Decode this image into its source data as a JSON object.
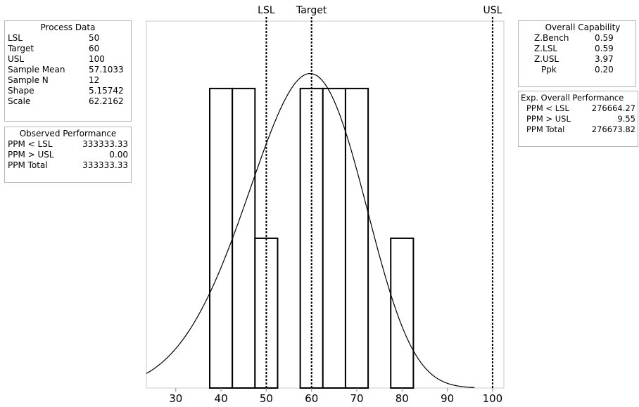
{
  "process_data": {
    "title": "Process Data",
    "rows": [
      {
        "label": "LSL",
        "value": "50"
      },
      {
        "label": "Target",
        "value": "60"
      },
      {
        "label": "USL",
        "value": "100"
      },
      {
        "label": "Sample Mean",
        "value": "57.1033"
      },
      {
        "label": "Sample N",
        "value": "12"
      },
      {
        "label": "Shape",
        "value": "5.15742"
      },
      {
        "label": "Scale",
        "value": "62.2162"
      }
    ]
  },
  "observed_performance": {
    "title": "Observed Performance",
    "rows": [
      {
        "label": "PPM < LSL",
        "value": "333333.33"
      },
      {
        "label": "PPM > USL",
        "value": "0.00"
      },
      {
        "label": "PPM Total",
        "value": "333333.33"
      }
    ]
  },
  "overall_capability": {
    "title": "Overall Capability",
    "rows": [
      {
        "label": "Z.Bench",
        "value": "0.59"
      },
      {
        "label": "Z.LSL",
        "value": "0.59"
      },
      {
        "label": "Z.USL",
        "value": "3.97"
      },
      {
        "label": "Ppk",
        "value": "0.20"
      }
    ]
  },
  "exp_overall_performance": {
    "title": "Exp. Overall Performance",
    "rows": [
      {
        "label": "PPM < LSL",
        "value": "276664.27"
      },
      {
        "label": "PPM > USL",
        "value": "9.55"
      },
      {
        "label": "PPM Total",
        "value": "276673.82"
      }
    ]
  },
  "chart_data": {
    "type": "bar",
    "subtype": "histogram",
    "bins": [
      {
        "x0": 37.5,
        "x1": 42.5,
        "count": 2
      },
      {
        "x0": 42.5,
        "x1": 47.5,
        "count": 2
      },
      {
        "x0": 47.5,
        "x1": 52.5,
        "count": 1
      },
      {
        "x0": 57.5,
        "x1": 62.5,
        "count": 2
      },
      {
        "x0": 62.5,
        "x1": 67.5,
        "count": 2
      },
      {
        "x0": 67.5,
        "x1": 72.5,
        "count": 2
      },
      {
        "x0": 77.5,
        "x1": 82.5,
        "count": 1
      }
    ],
    "fitted_curve": {
      "distribution": "Weibull",
      "shape": 5.15742,
      "scale": 62.2162
    },
    "spec_lines": [
      {
        "label": "LSL",
        "value": 50
      },
      {
        "label": "Target",
        "value": 60
      },
      {
        "label": "USL",
        "value": 100
      }
    ],
    "x_ticks": [
      30,
      40,
      50,
      60,
      70,
      80,
      90,
      100
    ],
    "xlim": [
      23.5,
      102.5
    ],
    "ylim": [
      0,
      2.45
    ],
    "grid": false,
    "title": "",
    "xlabel": "",
    "ylabel": "",
    "colors": {
      "bar_fill": "#ffffff",
      "bar_stroke": "#000000",
      "curve": "#000000",
      "frame": "#c8c8c8"
    }
  }
}
